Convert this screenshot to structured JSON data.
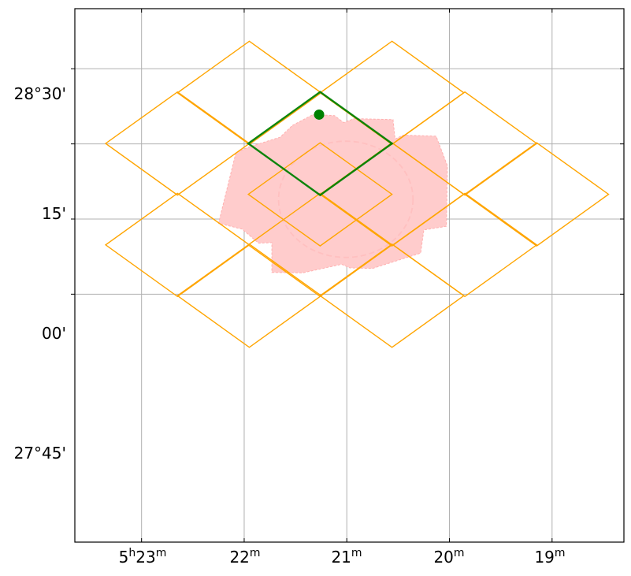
{
  "chart_data": {
    "type": "scatter",
    "projection": "sky (RA / Dec)",
    "xlabel": "",
    "ylabel": "",
    "grid": true,
    "x_axis": {
      "unit": "RA (minutes of time, 5h)",
      "range": [
        23.65,
        18.3
      ],
      "ticks": [
        {
          "value": 23,
          "hours": "5",
          "hours_unit": "h",
          "minutes": "23",
          "minutes_unit": "m"
        },
        {
          "value": 22,
          "hours": "",
          "hours_unit": "",
          "minutes": "22",
          "minutes_unit": "m"
        },
        {
          "value": 21,
          "hours": "",
          "hours_unit": "",
          "minutes": "21",
          "minutes_unit": "m"
        },
        {
          "value": 20,
          "hours": "",
          "hours_unit": "",
          "minutes": "20",
          "minutes_unit": "m"
        },
        {
          "value": 19,
          "hours": "",
          "hours_unit": "",
          "minutes": "19",
          "minutes_unit": "m"
        }
      ]
    },
    "y_axis": {
      "unit": "Dec (arcmin relative to 28°00')",
      "range": [
        -64.5,
        42.0
      ],
      "ticks": [
        {
          "value": 30,
          "label": "28°30'"
        },
        {
          "value": 15,
          "label": "15'"
        },
        {
          "value": 0,
          "label": "00'"
        },
        {
          "value": -15,
          "label": "27°45'"
        }
      ]
    },
    "grid_lines": {
      "ra_minutes": [
        23,
        22,
        21,
        20,
        19
      ],
      "dec_arcmin": [
        30,
        15,
        0,
        -15
      ]
    },
    "colors": {
      "footprint_outline": "#FFA500",
      "highlight_outline": "#008000",
      "target_point": "#008000",
      "coverage_fill": "#FFCCCC",
      "coverage_edge": "#FFB0B0",
      "circle": "#FFC0C0",
      "grid": "#B0B0B0"
    },
    "footprints": [
      {
        "center": [
          22.65,
          15.08
        ],
        "half_diag_ra": 0.7,
        "half_diag_dec": 10.3
      },
      {
        "center": [
          21.95,
          25.2
        ],
        "half_diag_ra": 0.7,
        "half_diag_dec": 10.3
      },
      {
        "center": [
          20.56,
          25.2
        ],
        "half_diag_ra": 0.7,
        "half_diag_dec": 10.3
      },
      {
        "center": [
          19.85,
          15.08
        ],
        "half_diag_ra": 0.7,
        "half_diag_dec": 10.3
      },
      {
        "center": [
          19.15,
          4.93
        ],
        "half_diag_ra": 0.7,
        "half_diag_dec": 10.3
      },
      {
        "center": [
          19.85,
          -5.16
        ],
        "half_diag_ra": 0.7,
        "half_diag_dec": 10.3
      },
      {
        "center": [
          20.56,
          -15.31
        ],
        "half_diag_ra": 0.7,
        "half_diag_dec": 10.3
      },
      {
        "center": [
          21.95,
          -15.31
        ],
        "half_diag_ra": 0.7,
        "half_diag_dec": 10.3
      },
      {
        "center": [
          22.65,
          -5.16
        ],
        "half_diag_ra": 0.7,
        "half_diag_dec": 10.3
      },
      {
        "center": [
          21.26,
          4.93
        ],
        "half_diag_ra": 0.7,
        "half_diag_dec": 10.3
      },
      {
        "center": [
          21.26,
          -5.16
        ],
        "half_diag_ra": 0.7,
        "half_diag_dec": 10.3
      },
      {
        "center": [
          20.56,
          4.93
        ],
        "half_diag_ra": 0.7,
        "half_diag_dec": 10.3
      }
    ],
    "highlighted_footprint": {
      "center": [
        21.26,
        15.08
      ],
      "half_diag_ra": 0.7,
      "half_diag_dec": 10.3
    },
    "coverage_polygon": [
      [
        21.53,
        18.69
      ],
      [
        21.33,
        20.85
      ],
      [
        21.12,
        20.65
      ],
      [
        21.03,
        19.25
      ],
      [
        20.93,
        20.05
      ],
      [
        20.55,
        19.85
      ],
      [
        20.53,
        15.98
      ],
      [
        20.45,
        16.75
      ],
      [
        20.13,
        16.55
      ],
      [
        20.02,
        10.65
      ],
      [
        20.03,
        -1.45
      ],
      [
        20.25,
        -2.17
      ],
      [
        20.28,
        -6.8
      ],
      [
        20.75,
        -9.86
      ],
      [
        20.97,
        -9.75
      ],
      [
        21.05,
        -9.03
      ],
      [
        21.43,
        -10.75
      ],
      [
        21.73,
        -10.65
      ],
      [
        21.73,
        -4.71
      ],
      [
        21.86,
        -4.81
      ],
      [
        22.02,
        -2.02
      ],
      [
        22.25,
        -0.85
      ],
      [
        22.08,
        13.28
      ],
      [
        21.95,
        14.41
      ],
      [
        21.65,
        16.34
      ]
    ],
    "circle": {
      "center": [
        21.01,
        3.94
      ],
      "radius_ra": 0.655,
      "radius_dec": 11.6
    },
    "target": {
      "ra": 21.27,
      "dec": 20.85
    }
  }
}
